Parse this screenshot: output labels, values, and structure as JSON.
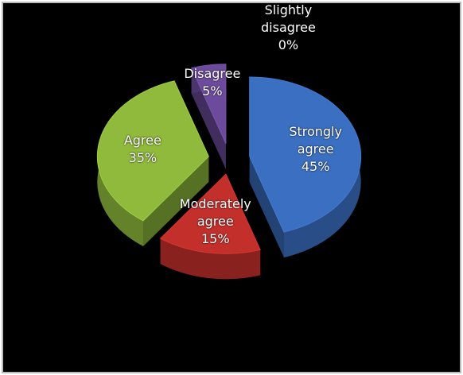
{
  "chart_data": {
    "type": "pie",
    "categories": [
      "Strongly agree",
      "Moderately agree",
      "Agree",
      "Disagree",
      "Slightly disagree"
    ],
    "values": [
      45,
      15,
      35,
      5,
      0
    ],
    "value_labels": [
      "45%",
      "15%",
      "35%",
      "5%",
      "0%"
    ],
    "colors": [
      "#3b6fc1",
      "#c3302c",
      "#8fba3c",
      "#6c4b9c",
      "#3fa8c8"
    ]
  }
}
